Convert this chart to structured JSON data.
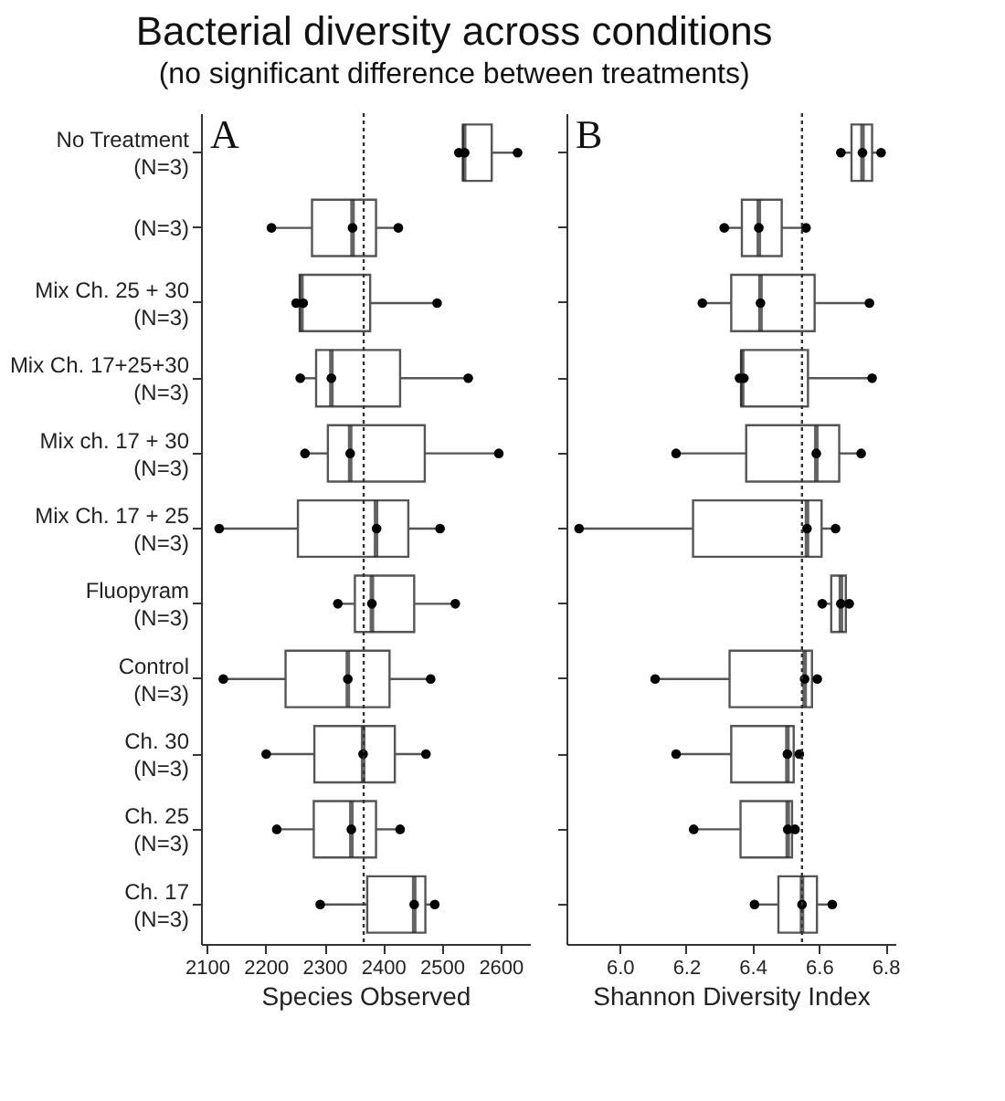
{
  "chart_data": [
    {
      "type": "box",
      "orientation": "horizontal",
      "title": "Bacterial diversity across conditions",
      "subtitle": "(no significant difference between treatments)",
      "xlabel": "Species Observed",
      "annotations": [
        "A"
      ],
      "categories": [
        "No Treatment\n(N=3)",
        "(N=3)",
        "Mix Ch. 25 + 30\n(N=3)",
        "Mix Ch. 17+25+30\n(N=3)",
        "Mix ch. 17 + 30\n(N=3)",
        "Mix Ch. 17 + 25\n(N=3)",
        "Fluopyram\n(N=3)",
        "Control\n(N=3)",
        "Ch. 30\n(N=3)",
        "Ch. 25\n(N=3)",
        "Ch. 17\n(N=3)"
      ],
      "xlim": [
        2090,
        2650
      ],
      "xticks": [
        2100,
        2200,
        2300,
        2400,
        2500,
        2600
      ],
      "ref_lines": [
        {
          "axis": "x",
          "value": 2367,
          "line_style": "dotted"
        }
      ],
      "series": [
        {
          "type": "box",
          "color": "#555555",
          "boxes": [
            {
              "low": 2529,
              "q1": 2536,
              "median": 2538,
              "q3": 2585,
              "high": 2628
            },
            {
              "low": 2211,
              "q1": 2279,
              "median": 2348,
              "q3": 2388,
              "high": 2425
            },
            {
              "low": 2252,
              "q1": 2258,
              "median": 2261,
              "q3": 2378,
              "high": 2491
            },
            {
              "low": 2259,
              "q1": 2286,
              "median": 2312,
              "q3": 2429,
              "high": 2545
            },
            {
              "low": 2268,
              "q1": 2306,
              "median": 2344,
              "q3": 2471,
              "high": 2595
            },
            {
              "low": 2122,
              "q1": 2255,
              "median": 2388,
              "q3": 2443,
              "high": 2497
            },
            {
              "low": 2322,
              "q1": 2352,
              "median": 2381,
              "q3": 2453,
              "high": 2522
            },
            {
              "low": 2128,
              "q1": 2234,
              "median": 2340,
              "q3": 2411,
              "high": 2481
            },
            {
              "low": 2201,
              "q1": 2283,
              "median": 2366,
              "q3": 2420,
              "high": 2473
            },
            {
              "low": 2219,
              "q1": 2282,
              "median": 2346,
              "q3": 2388,
              "high": 2429
            },
            {
              "low": 2293,
              "q1": 2373,
              "median": 2453,
              "q3": 2472,
              "high": 2488
            }
          ]
        },
        {
          "type": "scatter",
          "color": "#000000",
          "marker": "circle",
          "x": [
            "No Treatment\n(N=3)",
            "No Treatment\n(N=3)",
            "No Treatment\n(N=3)",
            "(N=3)",
            "(N=3)",
            "(N=3)",
            "Mix Ch. 25 + 30\n(N=3)",
            "Mix Ch. 25 + 30\n(N=3)",
            "Mix Ch. 25 + 30\n(N=3)",
            "Mix Ch. 17+25+30\n(N=3)",
            "Mix Ch. 17+25+30\n(N=3)",
            "Mix Ch. 17+25+30\n(N=3)",
            "Mix ch. 17 + 30\n(N=3)",
            "Mix ch. 17 + 30\n(N=3)",
            "Mix ch. 17 + 30\n(N=3)",
            "Mix Ch. 17 + 25\n(N=3)",
            "Mix Ch. 17 + 25\n(N=3)",
            "Mix Ch. 17 + 25\n(N=3)",
            "Fluopyram\n(N=3)",
            "Fluopyram\n(N=3)",
            "Fluopyram\n(N=3)",
            "Control\n(N=3)",
            "Control\n(N=3)",
            "Control\n(N=3)",
            "Ch. 30\n(N=3)",
            "Ch. 30\n(N=3)",
            "Ch. 30\n(N=3)",
            "Ch. 25\n(N=3)",
            "Ch. 25\n(N=3)",
            "Ch. 25\n(N=3)",
            "Ch. 17\n(N=3)",
            "Ch. 17\n(N=3)",
            "Ch. 17\n(N=3)"
          ],
          "values": [
            2529,
            2539,
            2629,
            2210,
            2348,
            2426,
            2252,
            2264,
            2492,
            2259,
            2312,
            2545,
            2267,
            2344,
            2597,
            2121,
            2389,
            2497,
            2323,
            2381,
            2523,
            2128,
            2340,
            2481,
            2201,
            2366,
            2473,
            2219,
            2346,
            2429,
            2293,
            2453,
            2488
          ]
        }
      ]
    },
    {
      "type": "box",
      "orientation": "horizontal",
      "xlabel": "Shannon Diversity Index",
      "annotations": [
        "B"
      ],
      "tick_labels": "x",
      "categories": [
        "No Treatment\n(N=3)",
        "(N=3)",
        "Mix Ch. 25 + 30\n(N=3)",
        "Mix Ch. 17+25+30\n(N=3)",
        "Mix ch. 17 + 30\n(N=3)",
        "Mix Ch. 17 + 25\n(N=3)",
        "Fluopyram\n(N=3)",
        "Control\n(N=3)",
        "Ch. 30\n(N=3)",
        "Ch. 25\n(N=3)",
        "Ch. 17\n(N=3)"
      ],
      "xlim": [
        5.84,
        6.83
      ],
      "xticks": [
        {
          "value": 6,
          "label": "6.0"
        },
        6.2,
        6.4,
        6.6,
        6.8
      ],
      "ref_lines": [
        {
          "axis": "x",
          "value": 6.549,
          "line_style": "dotted"
        }
      ],
      "series": [
        {
          "type": "box",
          "color": "#555555",
          "boxes": [
            {
              "low": 6.666,
              "q1": 6.698,
              "median": 6.731,
              "q3": 6.76,
              "high": 6.787
            },
            {
              "low": 6.315,
              "q1": 6.368,
              "median": 6.419,
              "q3": 6.488,
              "high": 6.561
            },
            {
              "low": 6.249,
              "q1": 6.336,
              "median": 6.424,
              "q3": 6.587,
              "high": 6.75
            },
            {
              "low": 6.361,
              "q1": 6.366,
              "median": 6.369,
              "q3": 6.567,
              "high": 6.76
            },
            {
              "low": 6.17,
              "q1": 6.381,
              "median": 6.592,
              "q3": 6.661,
              "high": 6.727
            },
            {
              "low": 5.878,
              "q1": 6.221,
              "median": 6.564,
              "q3": 6.608,
              "high": 6.65
            },
            {
              "low": 6.61,
              "q1": 6.637,
              "median": 6.666,
              "q3": 6.681,
              "high": 6.691
            },
            {
              "low": 6.107,
              "q1": 6.331,
              "median": 6.557,
              "q3": 6.579,
              "high": 6.595
            },
            {
              "low": 6.17,
              "q1": 6.336,
              "median": 6.505,
              "q3": 6.524,
              "high": 6.541
            },
            {
              "low": 6.223,
              "q1": 6.364,
              "median": 6.506,
              "q3": 6.519,
              "high": 6.528
            },
            {
              "low": 6.406,
              "q1": 6.478,
              "median": 6.549,
              "q3": 6.594,
              "high": 6.637
            }
          ]
        },
        {
          "type": "scatter",
          "color": "#000000",
          "marker": "circle",
          "x": [
            "No Treatment\n(N=3)",
            "No Treatment\n(N=3)",
            "No Treatment\n(N=3)",
            "(N=3)",
            "(N=3)",
            "(N=3)",
            "Mix Ch. 25 + 30\n(N=3)",
            "Mix Ch. 25 + 30\n(N=3)",
            "Mix Ch. 25 + 30\n(N=3)",
            "Mix Ch. 17+25+30\n(N=3)",
            "Mix Ch. 17+25+30\n(N=3)",
            "Mix Ch. 17+25+30\n(N=3)",
            "Mix ch. 17 + 30\n(N=3)",
            "Mix ch. 17 + 30\n(N=3)",
            "Mix ch. 17 + 30\n(N=3)",
            "Mix Ch. 17 + 25\n(N=3)",
            "Mix Ch. 17 + 25\n(N=3)",
            "Mix Ch. 17 + 25\n(N=3)",
            "Fluopyram\n(N=3)",
            "Fluopyram\n(N=3)",
            "Fluopyram\n(N=3)",
            "Control\n(N=3)",
            "Control\n(N=3)",
            "Control\n(N=3)",
            "Ch. 30\n(N=3)",
            "Ch. 30\n(N=3)",
            "Ch. 30\n(N=3)",
            "Ch. 25\n(N=3)",
            "Ch. 25\n(N=3)",
            "Ch. 25\n(N=3)",
            "Ch. 17\n(N=3)",
            "Ch. 17\n(N=3)",
            "Ch. 17\n(N=3)"
          ],
          "values": [
            6.666,
            6.731,
            6.787,
            6.315,
            6.419,
            6.561,
            6.249,
            6.424,
            6.752,
            6.361,
            6.374,
            6.76,
            6.17,
            6.592,
            6.727,
            5.878,
            6.564,
            6.65,
            6.61,
            6.666,
            6.691,
            6.107,
            6.557,
            6.595,
            6.17,
            6.505,
            6.541,
            6.223,
            6.506,
            6.528,
            6.406,
            6.549,
            6.64
          ]
        }
      ]
    }
  ]
}
